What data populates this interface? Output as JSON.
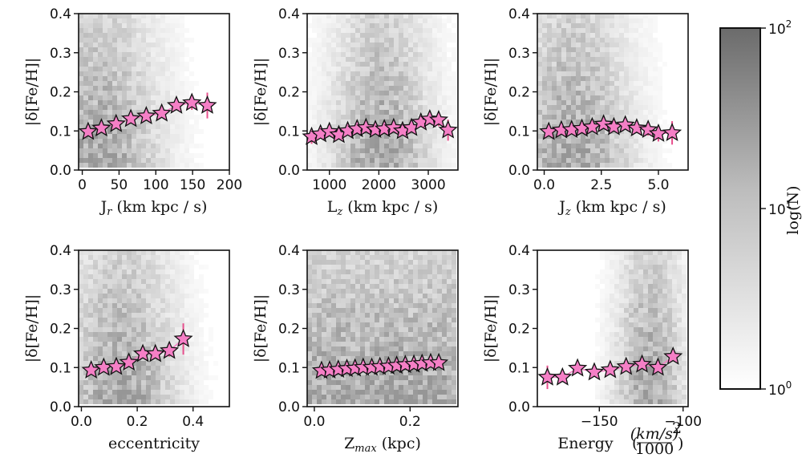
{
  "chart_data": [
    {
      "type": "scatter",
      "panel": "Jr",
      "xlabel_main": "J",
      "xlabel_sub": "r",
      "xlabel_rest": " (km kpc / s)",
      "ylabel": "|δ[Fe/H]|",
      "xlim": [
        -5,
        200
      ],
      "ylim": [
        0,
        0.4
      ],
      "xticks": [
        "0",
        "50",
        "100",
        "150",
        "200"
      ],
      "xtick_values": [
        0,
        50,
        100,
        150,
        200
      ],
      "yticks": [
        "0.0",
        "0.1",
        "0.2",
        "0.3",
        "0.4"
      ],
      "ytick_values": [
        0,
        0.1,
        0.2,
        0.3,
        0.4
      ],
      "density_center": 20,
      "density_spread": 60,
      "points": [
        {
          "x": 8,
          "y": 0.098,
          "err": 0.008
        },
        {
          "x": 26,
          "y": 0.107,
          "err": 0.005
        },
        {
          "x": 46,
          "y": 0.118,
          "err": 0.005
        },
        {
          "x": 66,
          "y": 0.131,
          "err": 0.006
        },
        {
          "x": 87,
          "y": 0.138,
          "err": 0.007
        },
        {
          "x": 108,
          "y": 0.145,
          "err": 0.008
        },
        {
          "x": 128,
          "y": 0.165,
          "err": 0.012
        },
        {
          "x": 149,
          "y": 0.172,
          "err": 0.018
        },
        {
          "x": 170,
          "y": 0.165,
          "err": 0.033
        }
      ]
    },
    {
      "type": "scatter",
      "panel": "Lz",
      "xlabel_main": "L",
      "xlabel_sub": "z",
      "xlabel_rest": " (km kpc / s)",
      "ylabel": "|δ[Fe/H]|",
      "xlim": [
        550,
        3600
      ],
      "ylim": [
        0,
        0.4
      ],
      "xticks": [
        "1000",
        "2000",
        "3000"
      ],
      "xtick_values": [
        1000,
        2000,
        3000
      ],
      "yticks": [
        "0.0",
        "0.1",
        "0.2",
        "0.3",
        "0.4"
      ],
      "ytick_values": [
        0,
        0.1,
        0.2,
        0.3,
        0.4
      ],
      "density_center": 2050,
      "density_spread": 700,
      "points": [
        {
          "x": 640,
          "y": 0.085,
          "err": 0.018
        },
        {
          "x": 820,
          "y": 0.092,
          "err": 0.01
        },
        {
          "x": 1000,
          "y": 0.098,
          "err": 0.007
        },
        {
          "x": 1190,
          "y": 0.09,
          "err": 0.006
        },
        {
          "x": 1370,
          "y": 0.1,
          "err": 0.006
        },
        {
          "x": 1560,
          "y": 0.105,
          "err": 0.005
        },
        {
          "x": 1740,
          "y": 0.108,
          "err": 0.005
        },
        {
          "x": 1930,
          "y": 0.103,
          "err": 0.005
        },
        {
          "x": 2110,
          "y": 0.105,
          "err": 0.005
        },
        {
          "x": 2300,
          "y": 0.108,
          "err": 0.005
        },
        {
          "x": 2480,
          "y": 0.1,
          "err": 0.006
        },
        {
          "x": 2660,
          "y": 0.108,
          "err": 0.007
        },
        {
          "x": 2850,
          "y": 0.122,
          "err": 0.009
        },
        {
          "x": 3030,
          "y": 0.13,
          "err": 0.012
        },
        {
          "x": 3210,
          "y": 0.128,
          "err": 0.016
        },
        {
          "x": 3400,
          "y": 0.102,
          "err": 0.027
        }
      ]
    },
    {
      "type": "scatter",
      "panel": "Jz",
      "xlabel_main": "J",
      "xlabel_sub": "z",
      "xlabel_rest": " (km kpc / s)",
      "ylabel": "|δ[Fe/H]|",
      "xlim": [
        -0.3,
        6.3
      ],
      "ylim": [
        0,
        0.4
      ],
      "xticks": [
        "0.0",
        "2.5",
        "5.0"
      ],
      "xtick_values": [
        0,
        2.5,
        5
      ],
      "yticks": [
        "0.0",
        "0.1",
        "0.2",
        "0.3",
        "0.4"
      ],
      "ytick_values": [
        0,
        0.1,
        0.2,
        0.3,
        0.4
      ],
      "density_center": 1.2,
      "density_spread": 1.8,
      "points": [
        {
          "x": 0.2,
          "y": 0.098,
          "err": 0.012
        },
        {
          "x": 0.75,
          "y": 0.102,
          "err": 0.006
        },
        {
          "x": 1.2,
          "y": 0.103,
          "err": 0.005
        },
        {
          "x": 1.65,
          "y": 0.106,
          "err": 0.005
        },
        {
          "x": 2.1,
          "y": 0.11,
          "err": 0.006
        },
        {
          "x": 2.6,
          "y": 0.117,
          "err": 0.007
        },
        {
          "x": 3.05,
          "y": 0.11,
          "err": 0.008
        },
        {
          "x": 3.55,
          "y": 0.115,
          "err": 0.01
        },
        {
          "x": 4.05,
          "y": 0.107,
          "err": 0.012
        },
        {
          "x": 4.55,
          "y": 0.103,
          "err": 0.015
        },
        {
          "x": 5.0,
          "y": 0.093,
          "err": 0.02
        },
        {
          "x": 5.6,
          "y": 0.095,
          "err": 0.03
        }
      ]
    },
    {
      "type": "scatter",
      "panel": "eccentricity",
      "xlabel_main": "eccentricity",
      "xlabel_sub": "",
      "xlabel_rest": "",
      "ylabel": "|δ[Fe/H]|",
      "xlim": [
        -0.01,
        0.53
      ],
      "ylim": [
        0,
        0.4
      ],
      "xticks": [
        "0.0",
        "0.2",
        "0.4"
      ],
      "xtick_values": [
        0,
        0.2,
        0.4
      ],
      "yticks": [
        "0.0",
        "0.1",
        "0.2",
        "0.3",
        "0.4"
      ],
      "ytick_values": [
        0,
        0.1,
        0.2,
        0.3,
        0.4
      ],
      "density_center": 0.14,
      "density_spread": 0.14,
      "points": [
        {
          "x": 0.035,
          "y": 0.093,
          "err": 0.006
        },
        {
          "x": 0.08,
          "y": 0.1,
          "err": 0.005
        },
        {
          "x": 0.125,
          "y": 0.102,
          "err": 0.005
        },
        {
          "x": 0.17,
          "y": 0.113,
          "err": 0.006
        },
        {
          "x": 0.22,
          "y": 0.135,
          "err": 0.008
        },
        {
          "x": 0.265,
          "y": 0.135,
          "err": 0.01
        },
        {
          "x": 0.315,
          "y": 0.143,
          "err": 0.015
        },
        {
          "x": 0.365,
          "y": 0.173,
          "err": 0.04
        }
      ]
    },
    {
      "type": "scatter",
      "panel": "Zmax",
      "xlabel_main": "Z",
      "xlabel_sub": "max",
      "xlabel_rest": " (kpc)",
      "ylabel": "|δ[Fe/H]|",
      "xlim": [
        -0.015,
        0.3
      ],
      "ylim": [
        0,
        0.4
      ],
      "xticks": [
        "0.0",
        "0.2"
      ],
      "xtick_values": [
        0,
        0.2
      ],
      "yticks": [
        "0.0",
        "0.1",
        "0.2",
        "0.3",
        "0.4"
      ],
      "ytick_values": [
        0,
        0.1,
        0.2,
        0.3,
        0.4
      ],
      "density_center": 0.14,
      "density_spread": 0.5,
      "points": [
        {
          "x": 0.015,
          "y": 0.092,
          "err": 0.005
        },
        {
          "x": 0.032,
          "y": 0.093,
          "err": 0.004
        },
        {
          "x": 0.05,
          "y": 0.095,
          "err": 0.004
        },
        {
          "x": 0.068,
          "y": 0.097,
          "err": 0.004
        },
        {
          "x": 0.085,
          "y": 0.098,
          "err": 0.004
        },
        {
          "x": 0.102,
          "y": 0.1,
          "err": 0.004
        },
        {
          "x": 0.12,
          "y": 0.1,
          "err": 0.004
        },
        {
          "x": 0.137,
          "y": 0.102,
          "err": 0.004
        },
        {
          "x": 0.155,
          "y": 0.103,
          "err": 0.004
        },
        {
          "x": 0.172,
          "y": 0.105,
          "err": 0.004
        },
        {
          "x": 0.19,
          "y": 0.107,
          "err": 0.004
        },
        {
          "x": 0.208,
          "y": 0.108,
          "err": 0.004
        },
        {
          "x": 0.225,
          "y": 0.11,
          "err": 0.005
        },
        {
          "x": 0.243,
          "y": 0.112,
          "err": 0.005
        },
        {
          "x": 0.26,
          "y": 0.112,
          "err": 0.006
        }
      ]
    },
    {
      "type": "scatter",
      "panel": "Energy",
      "xlabel_main": "Energy",
      "xlabel_sub": "",
      "xlabel_rest": "",
      "xlabel_frac_num": "(km/s)",
      "xlabel_frac_den": "1000",
      "ylabel": "|δ[Fe/H]|",
      "xlim": [
        -187,
        -97
      ],
      "ylim": [
        0,
        0.4
      ],
      "xticks": [
        "−150",
        "−100"
      ],
      "xtick_values": [
        -150,
        -100
      ],
      "yticks": [
        "0.0",
        "0.1",
        "0.2",
        "0.3",
        "0.4"
      ],
      "ytick_values": [
        0,
        0.1,
        0.2,
        0.3,
        0.4
      ],
      "density_center": -120,
      "density_spread": 14,
      "points": [
        {
          "x": -181,
          "y": 0.075,
          "err": 0.03
        },
        {
          "x": -172,
          "y": 0.075,
          "err": 0.012
        },
        {
          "x": -163,
          "y": 0.098,
          "err": 0.008
        },
        {
          "x": -153,
          "y": 0.088,
          "err": 0.006
        },
        {
          "x": -143.5,
          "y": 0.094,
          "err": 0.005
        },
        {
          "x": -134,
          "y": 0.102,
          "err": 0.005
        },
        {
          "x": -124.5,
          "y": 0.108,
          "err": 0.005
        },
        {
          "x": -115,
          "y": 0.1,
          "err": 0.006
        },
        {
          "x": -106,
          "y": 0.128,
          "err": 0.01
        }
      ]
    }
  ],
  "colorbar": {
    "label": "log(N)",
    "ticks": [
      {
        "base": "10",
        "exp": "2",
        "frac": 0.0
      },
      {
        "base": "10",
        "exp": "1",
        "frac": 0.5
      },
      {
        "base": "10",
        "exp": "0",
        "frac": 1.0
      }
    ]
  },
  "colors": {
    "marker_fill": "#f57fc6",
    "marker_edge": "#111111",
    "error_bar": "#e8508e",
    "hex_dark": "#555555"
  }
}
